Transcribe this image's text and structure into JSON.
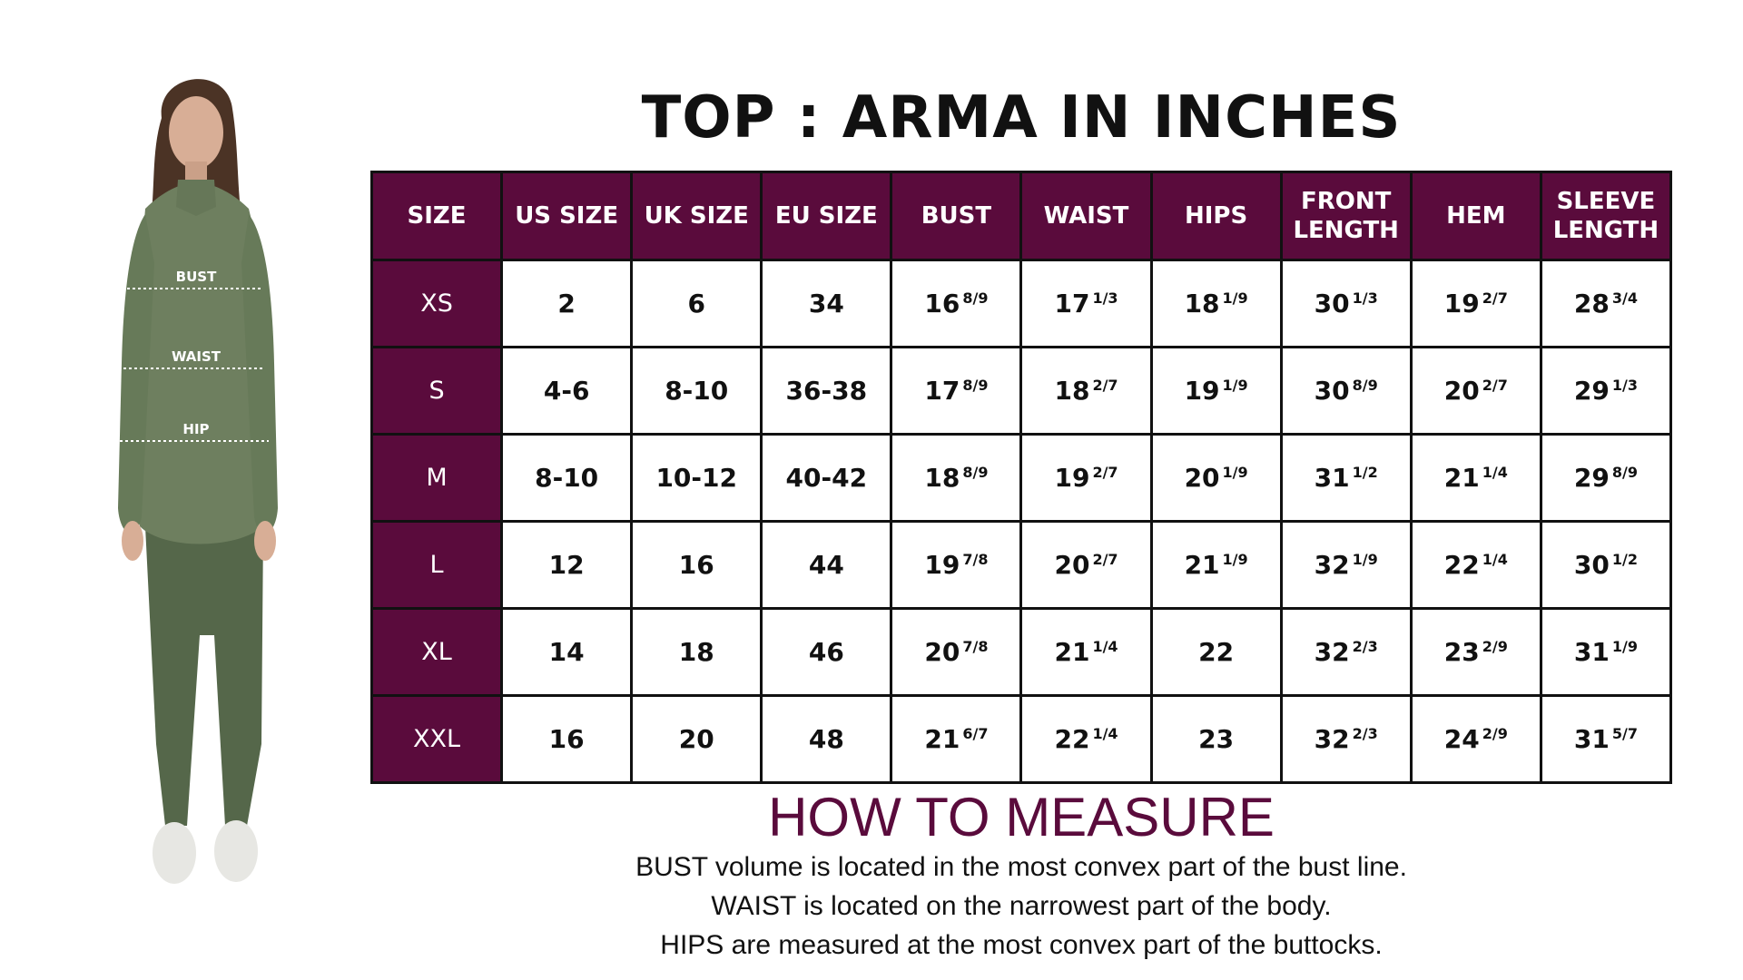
{
  "title": "TOP : ARMA IN INCHES",
  "figure": {
    "labels": {
      "bust": "BUST",
      "waist": "WAIST",
      "hip": "HIP"
    },
    "colors": {
      "shirt": "#6e7f5f",
      "leggings": "#55674a",
      "shoe": "#e7e7e3",
      "hair": "#4b3325",
      "skin": "#d8ae96"
    }
  },
  "table": {
    "headers": [
      "SIZE",
      "US SIZE",
      "UK SIZE",
      "EU SIZE",
      "BUST",
      "WAIST",
      "HIPS",
      "FRONT LENGTH",
      "HEM",
      "SLEEVE LENGTH"
    ],
    "rows": [
      {
        "size": "XS",
        "us": "2",
        "uk": "6",
        "eu": "34",
        "bust": {
          "w": "16",
          "f": "8/9"
        },
        "waist": {
          "w": "17",
          "f": "1/3"
        },
        "hips": {
          "w": "18",
          "f": "1/9"
        },
        "front": {
          "w": "30",
          "f": "1/3"
        },
        "hem": {
          "w": "19",
          "f": "2/7"
        },
        "sleeve": {
          "w": "28",
          "f": "3/4"
        }
      },
      {
        "size": "S",
        "us": "4-6",
        "uk": "8-10",
        "eu": "36-38",
        "bust": {
          "w": "17",
          "f": "8/9"
        },
        "waist": {
          "w": "18",
          "f": "2/7"
        },
        "hips": {
          "w": "19",
          "f": "1/9"
        },
        "front": {
          "w": "30",
          "f": "8/9"
        },
        "hem": {
          "w": "20",
          "f": "2/7"
        },
        "sleeve": {
          "w": "29",
          "f": "1/3"
        }
      },
      {
        "size": "M",
        "us": "8-10",
        "uk": "10-12",
        "eu": "40-42",
        "bust": {
          "w": "18",
          "f": "8/9"
        },
        "waist": {
          "w": "19",
          "f": "2/7"
        },
        "hips": {
          "w": "20",
          "f": "1/9"
        },
        "front": {
          "w": "31",
          "f": "1/2"
        },
        "hem": {
          "w": "21",
          "f": "1/4"
        },
        "sleeve": {
          "w": "29",
          "f": "8/9"
        }
      },
      {
        "size": "L",
        "us": "12",
        "uk": "16",
        "eu": "44",
        "bust": {
          "w": "19",
          "f": "7/8"
        },
        "waist": {
          "w": "20",
          "f": "2/7"
        },
        "hips": {
          "w": "21",
          "f": "1/9"
        },
        "front": {
          "w": "32",
          "f": "1/9"
        },
        "hem": {
          "w": "22",
          "f": "1/4"
        },
        "sleeve": {
          "w": "30",
          "f": "1/2"
        }
      },
      {
        "size": "XL",
        "us": "14",
        "uk": "18",
        "eu": "46",
        "bust": {
          "w": "20",
          "f": "7/8"
        },
        "waist": {
          "w": "21",
          "f": "1/4"
        },
        "hips": {
          "w": "22",
          "f": ""
        },
        "front": {
          "w": "32",
          "f": "2/3"
        },
        "hem": {
          "w": "23",
          "f": "2/9"
        },
        "sleeve": {
          "w": "31",
          "f": "1/9"
        }
      },
      {
        "size": "XXL",
        "us": "16",
        "uk": "20",
        "eu": "48",
        "bust": {
          "w": "21",
          "f": "6/7"
        },
        "waist": {
          "w": "22",
          "f": "1/4"
        },
        "hips": {
          "w": "23",
          "f": ""
        },
        "front": {
          "w": "32",
          "f": "2/3"
        },
        "hem": {
          "w": "24",
          "f": "2/9"
        },
        "sleeve": {
          "w": "31",
          "f": "5/7"
        }
      }
    ]
  },
  "how_to_measure": {
    "title": "HOW TO MEASURE",
    "lines": [
      "BUST volume is located in the most convex part of the bust line.",
      "WAIST is located on the narrowest part of the body.",
      "HIPS are measured at the most convex part of the buttocks."
    ]
  },
  "colors": {
    "header_bg": "#5a0b3c",
    "accent_text": "#5a0b3c",
    "border": "#111111"
  }
}
